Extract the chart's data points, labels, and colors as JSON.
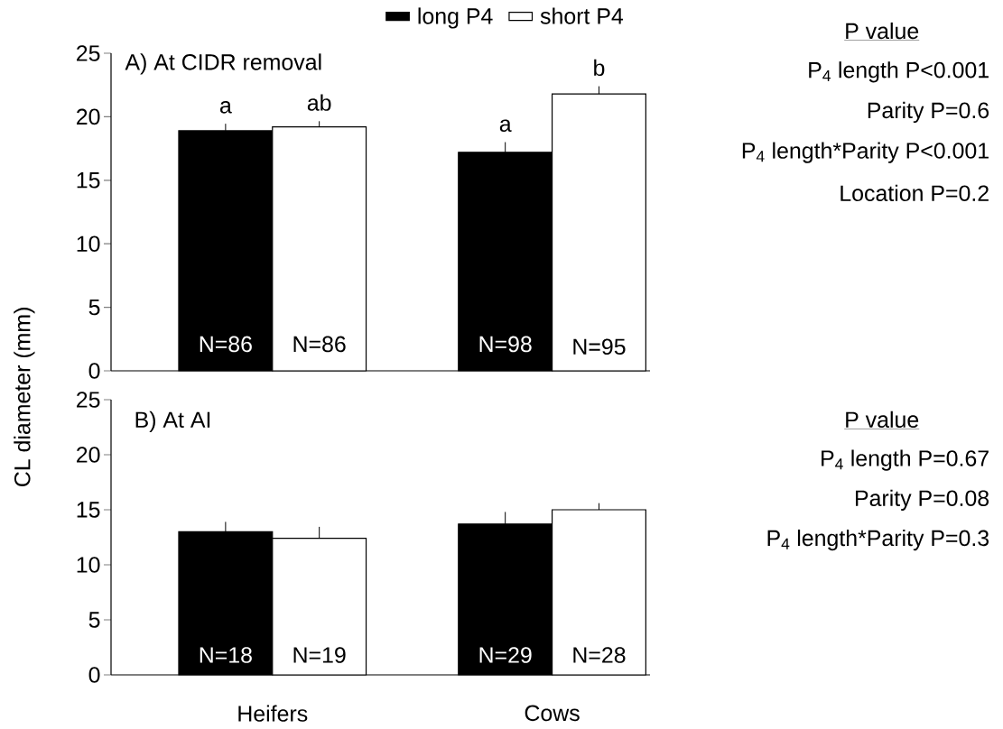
{
  "chart_data": [
    {
      "type": "bar",
      "title": "A) At CIDR removal",
      "ylabel": "CL diameter (mm)",
      "categories": [
        "Heifers",
        "Cows"
      ],
      "ylim": [
        0,
        25
      ],
      "yticks": [
        0,
        5,
        10,
        15,
        20,
        25
      ],
      "tick_labels": "y",
      "legend": "top",
      "grid": false,
      "series": [
        {
          "name": "long P4",
          "color": "#000000",
          "values": [
            18.9,
            17.2
          ],
          "errors": [
            [
              18.9,
              19.45
            ],
            [
              17.2,
              18.0
            ]
          ]
        },
        {
          "name": "short P4",
          "color": "#ffffff",
          "values": [
            19.2,
            21.8
          ],
          "errors": [
            [
              19.2,
              19.65
            ],
            [
              21.8,
              22.4
            ]
          ]
        }
      ],
      "annotations": [
        "P value",
        "P$_{4}$ length  P<0.001",
        "Parity P=0.6",
        "P$_{4}$ length*Parity P<0.001",
        "Location P=0.2",
        {
          "text": "a",
          "x": "Heifers",
          "y": 18.9
        },
        {
          "text": "ab",
          "x": "Heifers",
          "y": 19.2
        },
        {
          "text": "a",
          "x": "Cows",
          "y": 17.2
        },
        {
          "text": "b",
          "x": "Cows",
          "y": 21.8
        },
        {
          "text": "N=86",
          "x": "Heifers",
          "y": 2.1
        },
        {
          "text": "N=86",
          "x": "Heifers",
          "y": 2.1
        },
        {
          "text": "N=98",
          "x": "Cows",
          "y": 2.1
        },
        {
          "text": "N=95",
          "x": "Cows",
          "y": 1.9
        }
      ]
    },
    {
      "type": "bar",
      "title": "B) At AI",
      "categories": [
        "Heifers",
        "Cows"
      ],
      "ylim": [
        0,
        25
      ],
      "yticks": [
        0,
        5,
        10,
        15,
        20,
        25
      ],
      "grid": false,
      "series": [
        {
          "color": "#000000",
          "values": [
            13.0,
            13.7
          ],
          "errors": [
            [
              13.0,
              13.9
            ],
            [
              13.7,
              14.8
            ]
          ]
        },
        {
          "color": "#ffffff",
          "values": [
            12.4,
            15.0
          ],
          "errors": [
            [
              12.4,
              13.45
            ],
            [
              15.0,
              15.6
            ]
          ]
        }
      ],
      "annotations": [
        "P value",
        "P$_{4}$ length  P=0.67",
        "Parity P=0.08",
        "P$_{4}$ length*Parity P=0.3",
        {
          "text": "N=18",
          "x": "Heifers",
          "y": 1.8
        },
        {
          "text": "N=19",
          "x": "Heifers",
          "y": 1.8
        },
        {
          "text": "N=29",
          "x": "Cows",
          "y": 1.8
        },
        {
          "text": "N=28",
          "x": "Cows",
          "y": 1.8
        }
      ]
    }
  ]
}
